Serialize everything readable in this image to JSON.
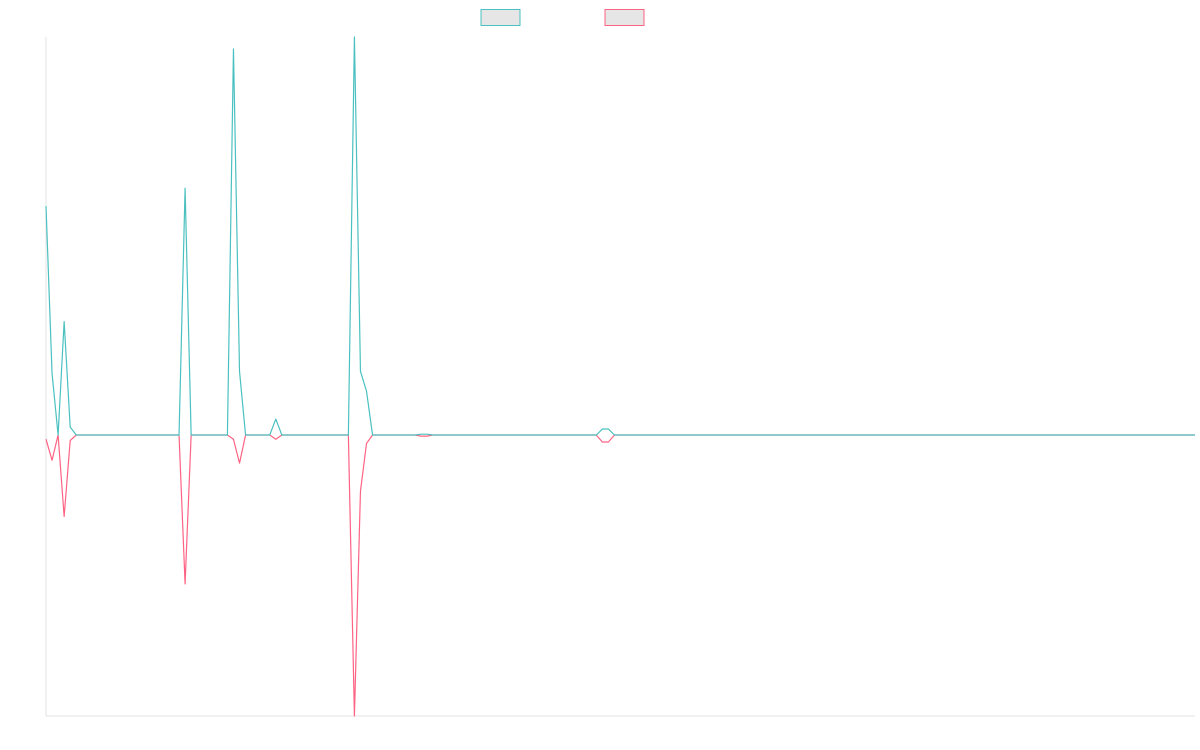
{
  "chart_data": {
    "type": "line",
    "title": "",
    "xlabel": "",
    "ylabel": "",
    "legend": {
      "position": "top-center",
      "entries": [
        {
          "name": "",
          "color": "#4bc0c0",
          "fill": "#e6e6e6"
        },
        {
          "name": "",
          "color": "#ff6384",
          "fill": "#e6e6e6"
        }
      ]
    },
    "grid": false,
    "ylim": [
      -1,
      1
    ],
    "x": [
      0,
      1,
      2,
      3,
      4,
      5,
      6,
      7,
      8,
      9,
      10,
      11,
      12,
      13,
      14,
      15,
      16,
      17,
      18,
      19,
      20,
      21,
      22,
      23,
      24,
      25,
      26,
      27,
      28,
      29,
      30,
      31,
      32,
      33,
      34,
      35,
      36,
      37,
      38,
      39,
      40,
      41,
      42,
      43,
      44,
      45,
      46,
      47,
      48,
      49,
      50,
      51,
      52,
      53,
      54,
      55,
      56,
      57,
      58,
      59,
      60,
      61,
      62,
      63,
      64,
      65,
      66,
      67,
      68,
      69,
      70,
      71,
      72,
      73,
      74,
      75,
      76,
      77,
      78,
      79,
      80,
      81,
      82,
      83,
      84,
      85,
      86,
      87,
      88,
      89,
      90,
      91,
      92,
      93,
      94,
      95,
      96,
      97,
      98,
      99,
      100,
      101,
      102,
      103,
      104,
      105,
      106,
      107,
      108,
      109,
      110,
      111,
      112,
      113,
      114,
      115,
      116,
      117,
      118,
      119,
      120,
      121,
      122,
      123,
      124,
      125,
      126,
      127,
      128,
      129,
      130,
      131,
      132,
      133,
      134,
      135,
      136,
      137,
      138,
      139,
      140,
      141,
      142,
      143,
      144,
      145,
      146,
      147,
      148,
      149,
      150,
      151,
      152,
      153,
      154,
      155,
      156,
      157,
      158,
      159,
      160,
      161,
      162,
      163,
      164,
      165,
      166,
      167,
      168,
      169,
      170,
      171,
      172,
      173,
      174,
      175,
      176,
      177,
      178,
      179,
      180,
      181,
      182,
      183,
      184,
      185,
      186,
      187,
      188,
      189,
      190
    ],
    "series": [
      {
        "color": "#4bc0c0",
        "values": [
          0.575,
          0.155,
          0,
          0.285,
          0.02,
          0,
          0,
          0,
          0,
          0,
          0,
          0,
          0,
          0,
          0,
          0,
          0,
          0,
          0,
          0,
          0,
          0,
          0,
          0.62,
          0,
          0,
          0,
          0,
          0,
          0,
          0,
          0.97,
          0.16,
          0,
          0,
          0,
          0,
          0,
          0.04,
          0,
          0,
          0,
          0,
          0,
          0,
          0,
          0,
          0,
          0,
          0,
          0,
          1,
          0.16,
          0.11,
          0,
          0,
          0,
          0,
          0,
          0,
          0,
          0,
          0.002,
          0.002,
          0,
          0,
          0,
          0,
          0,
          0,
          0,
          0,
          0,
          0,
          0,
          0,
          0,
          0,
          0,
          0,
          0,
          0,
          0,
          0,
          0,
          0,
          0,
          0,
          0,
          0,
          0,
          0,
          0.015,
          0.015,
          0,
          0,
          0,
          0,
          0,
          0,
          0,
          0,
          0,
          0,
          0,
          0,
          0,
          0,
          0,
          0,
          0,
          0,
          0,
          0,
          0,
          0,
          0,
          0,
          0,
          0,
          0,
          0,
          0,
          0,
          0,
          0,
          0,
          0,
          0,
          0,
          0,
          0,
          0,
          0,
          0,
          0,
          0,
          0,
          0,
          0,
          0,
          0,
          0,
          0,
          0,
          0,
          0,
          0,
          0,
          0,
          0,
          0,
          0,
          0,
          0,
          0,
          0,
          0,
          0,
          0,
          0,
          0,
          0,
          0,
          0,
          0,
          0,
          0,
          0,
          0,
          0,
          0,
          0,
          0,
          0,
          0,
          0,
          0,
          0,
          0,
          0,
          0,
          0,
          0,
          0,
          0,
          0,
          0,
          0,
          0,
          0
        ]
      },
      {
        "color": "#ff6384",
        "values": [
          -0.015,
          -0.09,
          0,
          -0.29,
          -0.02,
          0,
          0,
          0,
          0,
          0,
          0,
          0,
          0,
          0,
          0,
          0,
          0,
          0,
          0,
          0,
          0,
          0,
          0,
          -0.53,
          0,
          0,
          0,
          0,
          0,
          0,
          0,
          -0.015,
          -0.1,
          0,
          0,
          0,
          0,
          0,
          -0.015,
          0,
          0,
          0,
          0,
          0,
          0,
          0,
          0,
          0,
          0,
          0,
          0,
          -1,
          -0.2,
          -0.03,
          0,
          0,
          0,
          0,
          0,
          0,
          0,
          0,
          -0.004,
          -0.004,
          0,
          0,
          0,
          0,
          0,
          0,
          0,
          0,
          0,
          0,
          0,
          0,
          0,
          0,
          0,
          0,
          0,
          0,
          0,
          0,
          0,
          0,
          0,
          0,
          0,
          0,
          0,
          0,
          -0.025,
          -0.025,
          0,
          0,
          0,
          0,
          0,
          0,
          0,
          0,
          0,
          0,
          0,
          0,
          0,
          0,
          0,
          0,
          0,
          0,
          0,
          0,
          0,
          0,
          0,
          0,
          0,
          0,
          0,
          0,
          0,
          0,
          0,
          0,
          0,
          0,
          0,
          0,
          0,
          0,
          0,
          0,
          0,
          0,
          0,
          0,
          0,
          0,
          0,
          0,
          0,
          0,
          0,
          0,
          0,
          0,
          0,
          0,
          0,
          0,
          0,
          0,
          0,
          0,
          0,
          0,
          0,
          0,
          0,
          0,
          0,
          0,
          0,
          0,
          0,
          0,
          0,
          0,
          0,
          0,
          0,
          0,
          0,
          0,
          0,
          0,
          0,
          0,
          0,
          0,
          0,
          0,
          0,
          0,
          0,
          0,
          0,
          0,
          0
        ]
      }
    ]
  }
}
